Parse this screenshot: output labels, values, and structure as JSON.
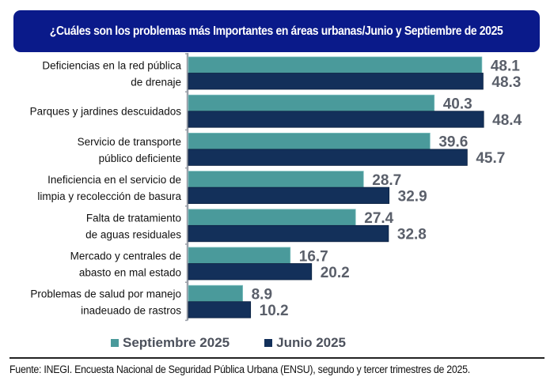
{
  "title": "¿Cuáles son los problemas más Importantes en áreas urbanas/Junio y Septiembre de 2025",
  "source": "Fuente: INEGI. Encuesta Nacional de Seguridad Pública Urbana (ENSU), segundo y tercer trimestres de 2025.",
  "colors": {
    "septiembre": "#4a9a9b",
    "junio": "#13305a",
    "title_bg": "#0a1a8a",
    "value_text": "#5a5f6a"
  },
  "legend": [
    {
      "label": "Septiembre 2025",
      "color": "#4a9a9b"
    },
    {
      "label": "Junio 2025",
      "color": "#13305a"
    }
  ],
  "chart_data": {
    "type": "bar",
    "orientation": "horizontal",
    "title": "¿Cuáles son los problemas más Importantes en áreas urbanas/Junio y Septiembre de 2025",
    "xlabel": "",
    "ylabel": "",
    "xlim": [
      0,
      50
    ],
    "grid": false,
    "legend_position": "bottom",
    "categories": [
      [
        "Deficiencias en la red pública",
        "de drenaje"
      ],
      [
        "Parques y jardines descuidados"
      ],
      [
        "Servicio de transporte",
        "público deficiente"
      ],
      [
        "Ineficiencia en el servicio de",
        "limpia y recolección de basura"
      ],
      [
        "Falta de tratamiento",
        "de aguas residuales"
      ],
      [
        "Mercado y centrales de",
        "abasto en mal estado"
      ],
      [
        "Problemas de salud por manejo",
        "inadeuado de rastros"
      ]
    ],
    "series": [
      {
        "name": "Septiembre 2025",
        "values": [
          48.1,
          40.3,
          39.6,
          28.7,
          27.4,
          16.7,
          8.9
        ]
      },
      {
        "name": "Junio 2025",
        "values": [
          48.3,
          48.4,
          45.7,
          32.9,
          32.8,
          20.2,
          10.2
        ]
      }
    ]
  }
}
